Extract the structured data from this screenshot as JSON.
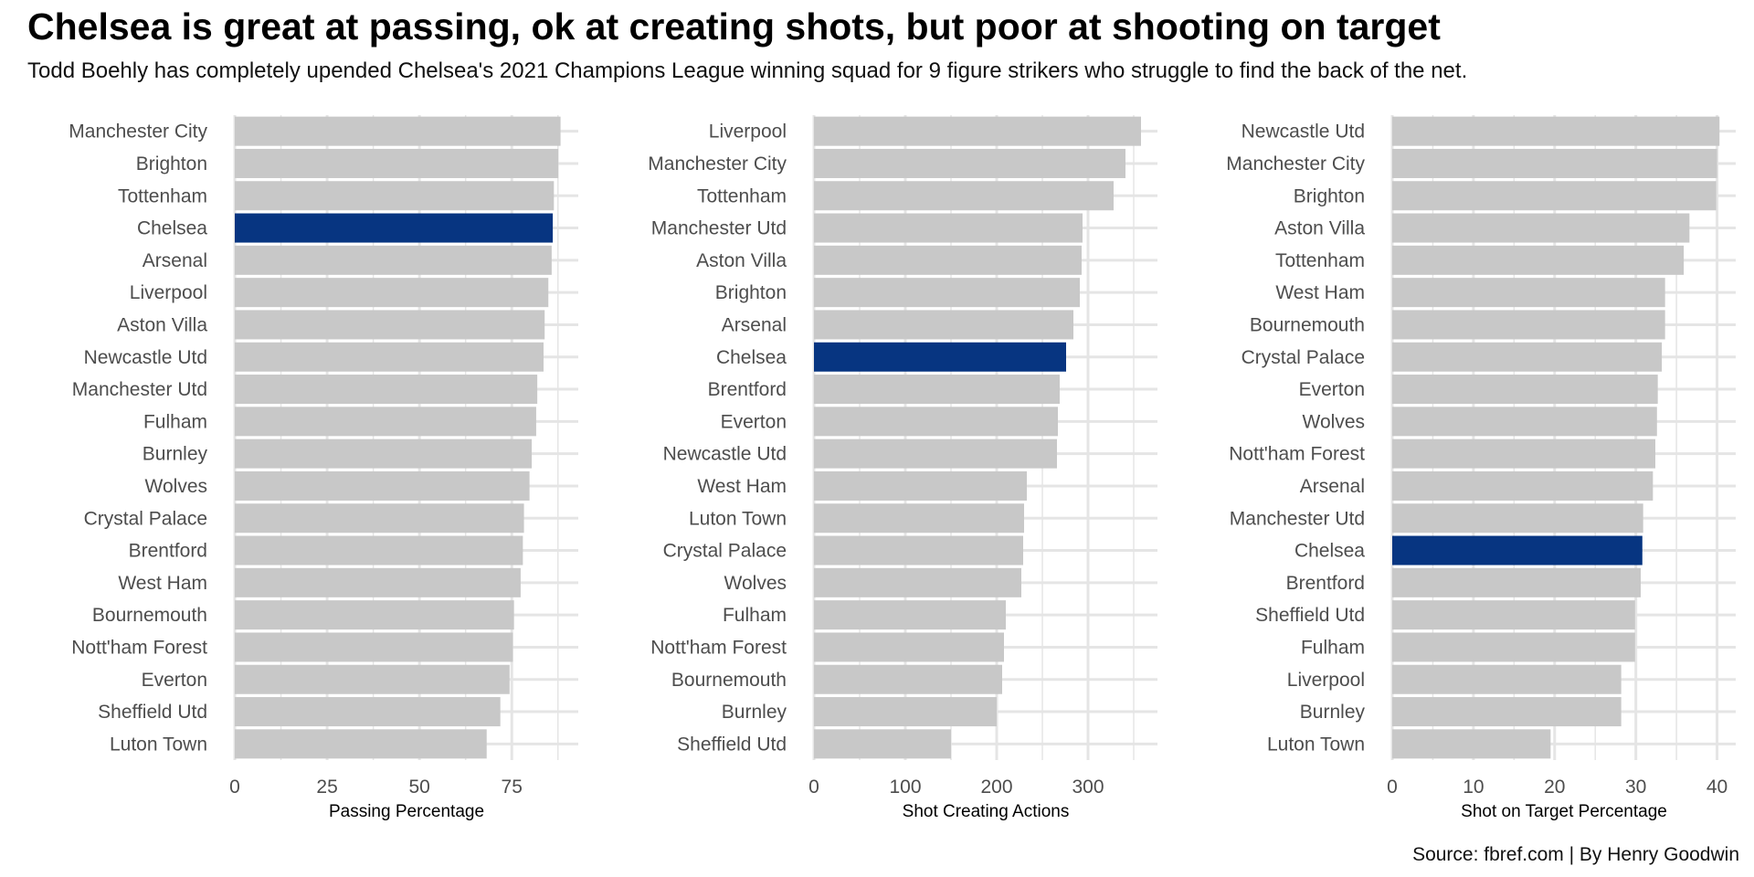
{
  "title": "Chelsea is great at passing, ok at creating shots, but poor at shooting on target",
  "subtitle": "Todd Boehly has completely upended Chelsea's 2021 Champions League winning squad for 9 figure strikers who struggle to find the back of the net.",
  "source": "Source: fbref.com | By Henry Goodwin",
  "colors": {
    "bar": "#c8c8c8",
    "highlight": "#073581",
    "grid": "#e5e5e5",
    "text": "#4d4d4d"
  },
  "chart_data": [
    {
      "type": "bar",
      "orientation": "horizontal",
      "xlabel": "Passing Percentage",
      "xlim": [
        0,
        93
      ],
      "ticks": [
        0,
        25,
        50,
        75
      ],
      "highlight": "Chelsea",
      "grid": true,
      "categories": [
        "Manchester City",
        "Brighton",
        "Tottenham",
        "Chelsea",
        "Arsenal",
        "Liverpool",
        "Aston Villa",
        "Newcastle Utd",
        "Manchester Utd",
        "Fulham",
        "Burnley",
        "Wolves",
        "Crystal Palace",
        "Brentford",
        "West Ham",
        "Bournemouth",
        "Nott'ham Forest",
        "Everton",
        "Sheffield Utd",
        "Luton Town"
      ],
      "values": [
        88.2,
        87.6,
        86.4,
        86.1,
        85.8,
        84.9,
        83.9,
        83.6,
        81.9,
        81.6,
        80.4,
        79.8,
        78.3,
        78.0,
        77.4,
        75.6,
        75.3,
        74.4,
        71.9,
        68.2
      ]
    },
    {
      "type": "bar",
      "orientation": "horizontal",
      "xlabel": "Shot Creating Actions",
      "xlim": [
        0,
        376
      ],
      "ticks": [
        0,
        100,
        200,
        300
      ],
      "highlight": "Chelsea",
      "grid": true,
      "categories": [
        "Liverpool",
        "Manchester City",
        "Tottenham",
        "Manchester Utd",
        "Aston Villa",
        "Brighton",
        "Arsenal",
        "Chelsea",
        "Brentford",
        "Everton",
        "Newcastle Utd",
        "West Ham",
        "Luton Town",
        "Crystal Palace",
        "Wolves",
        "Fulham",
        "Nott'ham Forest",
        "Bournemouth",
        "Burnley",
        "Sheffield Utd"
      ],
      "values": [
        358,
        341,
        328,
        294,
        293,
        291,
        284,
        276,
        269,
        267,
        266,
        233,
        230,
        229,
        227,
        210,
        208,
        206,
        200,
        150
      ]
    },
    {
      "type": "bar",
      "orientation": "horizontal",
      "xlabel": "Shot on Target Percentage",
      "xlim": [
        0,
        42.3
      ],
      "ticks": [
        0,
        10,
        20,
        30,
        40
      ],
      "highlight": "Chelsea",
      "grid": true,
      "categories": [
        "Newcastle Utd",
        "Manchester City",
        "Brighton",
        "Aston Villa",
        "Tottenham",
        "West Ham",
        "Bournemouth",
        "Crystal Palace",
        "Everton",
        "Wolves",
        "Nott'ham Forest",
        "Arsenal",
        "Manchester Utd",
        "Chelsea",
        "Brentford",
        "Sheffield Utd",
        "Fulham",
        "Liverpool",
        "Burnley",
        "Luton Town"
      ],
      "values": [
        40.3,
        40.0,
        39.9,
        36.6,
        35.9,
        33.6,
        33.6,
        33.2,
        32.7,
        32.6,
        32.4,
        32.1,
        30.9,
        30.8,
        30.6,
        29.9,
        29.9,
        28.2,
        28.2,
        19.5
      ]
    }
  ]
}
